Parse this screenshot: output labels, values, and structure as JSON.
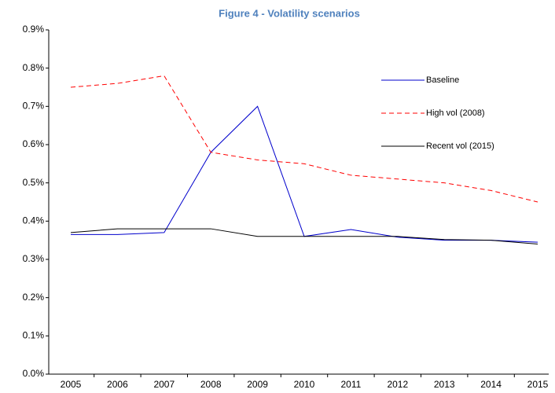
{
  "chart_data": {
    "type": "line",
    "title": "Figure 4 - Volatility scenarios",
    "categories": [
      "2005",
      "2006",
      "2007",
      "2008",
      "2009",
      "2010",
      "2011",
      "2012",
      "2013",
      "2014",
      "2015"
    ],
    "series": [
      {
        "name": "Baseline",
        "color": "#0000cc",
        "dashed": false,
        "values": [
          0.365,
          0.365,
          0.37,
          0.58,
          0.7,
          0.36,
          0.378,
          0.358,
          0.35,
          0.35,
          0.345
        ]
      },
      {
        "name": "High vol (2008)",
        "color": "#ff0000",
        "dashed": true,
        "values": [
          0.75,
          0.76,
          0.78,
          0.58,
          0.56,
          0.55,
          0.52,
          0.51,
          0.5,
          0.48,
          0.45
        ]
      },
      {
        "name": "Recent vol (2015)",
        "color": "#000000",
        "dashed": false,
        "values": [
          0.37,
          0.38,
          0.38,
          0.38,
          0.36,
          0.36,
          0.36,
          0.36,
          0.352,
          0.35,
          0.34
        ]
      }
    ],
    "ylim": [
      0,
      0.9
    ],
    "yticks": [
      {
        "value": 0,
        "label": "0.0%"
      },
      {
        "value": 0.1,
        "label": "0.1%"
      },
      {
        "value": 0.2,
        "label": "0.2%"
      },
      {
        "value": 0.3,
        "label": "0.3%"
      },
      {
        "value": 0.4,
        "label": "0.4%"
      },
      {
        "value": 0.5,
        "label": "0.5%"
      },
      {
        "value": 0.6,
        "label": "0.6%"
      },
      {
        "value": 0.7,
        "label": "0.7%"
      },
      {
        "value": 0.8,
        "label": "0.8%"
      },
      {
        "value": 0.9,
        "label": "0.9%"
      }
    ],
    "grid": false
  }
}
